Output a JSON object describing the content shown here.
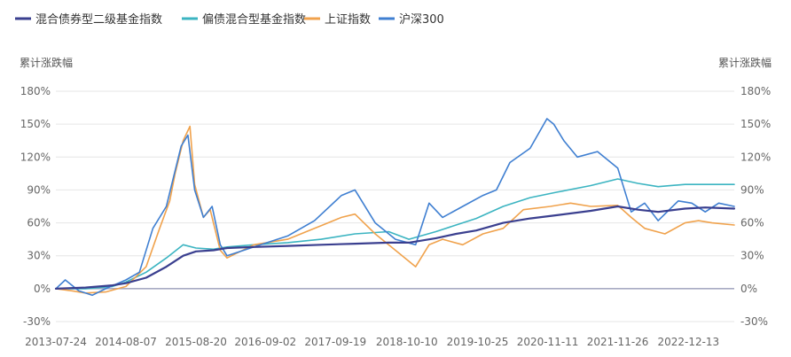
{
  "chart_data": {
    "type": "line",
    "ylabel_left": "累计涨跌幅",
    "ylabel_right": "累计涨跌幅",
    "ylim": [
      -30,
      180
    ],
    "yticks": [
      -30,
      0,
      30,
      60,
      90,
      120,
      150,
      180
    ],
    "ytick_labels": [
      "-30%",
      "0%",
      "30%",
      "60%",
      "90%",
      "120%",
      "150%",
      "180%"
    ],
    "xtick_labels": [
      "2013-07-24",
      "2014-08-07",
      "2015-08-20",
      "2016-09-02",
      "2017-09-19",
      "2018-10-10",
      "2019-10-25",
      "2020-11-11",
      "2021-11-26",
      "2022-12-13"
    ],
    "xtick_positions": [
      2013.56,
      2014.6,
      2015.64,
      2016.67,
      2017.71,
      2018.77,
      2019.82,
      2020.86,
      2021.9,
      2022.95
    ],
    "xlim": [
      2013.56,
      2023.63
    ],
    "grid": true,
    "legend_position": "top-left",
    "series": [
      {
        "name": "混合债券型二级基金指数",
        "color": "#3a3f8f",
        "x": [
          2013.56,
          2014.0,
          2014.4,
          2014.6,
          2014.9,
          2015.2,
          2015.45,
          2015.64,
          2015.9,
          2016.1,
          2016.5,
          2017.0,
          2017.5,
          2018.0,
          2018.5,
          2018.8,
          2019.2,
          2019.5,
          2019.8,
          2020.2,
          2020.6,
          2021.0,
          2021.5,
          2021.9,
          2022.2,
          2022.5,
          2022.9,
          2023.2,
          2023.63
        ],
        "values": [
          0,
          1,
          3,
          5,
          10,
          20,
          30,
          34,
          35,
          37,
          38,
          39,
          40,
          41,
          42,
          42,
          46,
          50,
          53,
          60,
          64,
          67,
          71,
          75,
          72,
          70,
          73,
          74,
          73
        ]
      },
      {
        "name": "偏债混合型基金指数",
        "color": "#3bb4c1",
        "x": [
          2013.56,
          2014.0,
          2014.4,
          2014.6,
          2014.9,
          2015.2,
          2015.45,
          2015.64,
          2015.9,
          2016.1,
          2016.5,
          2017.0,
          2017.5,
          2018.0,
          2018.5,
          2018.8,
          2019.2,
          2019.5,
          2019.8,
          2020.2,
          2020.6,
          2021.0,
          2021.5,
          2021.9,
          2022.2,
          2022.5,
          2022.9,
          2023.2,
          2023.63
        ],
        "values": [
          0,
          0,
          2,
          6,
          15,
          28,
          40,
          37,
          36,
          38,
          40,
          42,
          45,
          50,
          52,
          45,
          52,
          58,
          64,
          75,
          83,
          88,
          94,
          100,
          96,
          93,
          95,
          95,
          95
        ]
      },
      {
        "name": "上证指数",
        "color": "#f0a24c",
        "x": [
          2013.56,
          2013.8,
          2014.0,
          2014.3,
          2014.6,
          2014.9,
          2015.1,
          2015.25,
          2015.33,
          2015.45,
          2015.55,
          2015.62,
          2015.75,
          2015.85,
          2016.0,
          2016.1,
          2016.5,
          2017.0,
          2017.4,
          2017.8,
          2018.0,
          2018.3,
          2018.6,
          2018.9,
          2019.1,
          2019.3,
          2019.6,
          2019.9,
          2020.2,
          2020.5,
          2020.9,
          2021.2,
          2021.5,
          2021.9,
          2022.1,
          2022.3,
          2022.6,
          2022.9,
          2023.1,
          2023.3,
          2023.63
        ],
        "values": [
          0,
          -2,
          -4,
          -3,
          2,
          20,
          55,
          80,
          105,
          135,
          148,
          95,
          65,
          72,
          35,
          28,
          40,
          45,
          55,
          65,
          68,
          50,
          35,
          20,
          40,
          45,
          40,
          50,
          55,
          72,
          75,
          78,
          75,
          76,
          65,
          55,
          50,
          60,
          62,
          60,
          58
        ]
      },
      {
        "name": "沪深300",
        "color": "#3f7fd1",
        "x": [
          2013.56,
          2013.7,
          2013.9,
          2014.1,
          2014.3,
          2014.6,
          2014.8,
          2015.0,
          2015.2,
          2015.3,
          2015.42,
          2015.52,
          2015.62,
          2015.75,
          2015.88,
          2016.0,
          2016.1,
          2016.5,
          2017.0,
          2017.4,
          2017.8,
          2018.0,
          2018.3,
          2018.6,
          2018.9,
          2019.1,
          2019.3,
          2019.6,
          2019.9,
          2020.1,
          2020.3,
          2020.6,
          2020.85,
          2020.95,
          2021.1,
          2021.3,
          2021.6,
          2021.9,
          2022.1,
          2022.3,
          2022.5,
          2022.8,
          2023.0,
          2023.2,
          2023.4,
          2023.63
        ],
        "values": [
          0,
          8,
          -2,
          -6,
          0,
          8,
          15,
          55,
          75,
          100,
          130,
          140,
          90,
          65,
          75,
          40,
          30,
          38,
          48,
          62,
          85,
          90,
          60,
          45,
          40,
          78,
          65,
          75,
          85,
          90,
          115,
          128,
          155,
          150,
          135,
          120,
          125,
          110,
          70,
          78,
          62,
          80,
          78,
          70,
          78,
          75
        ]
      }
    ]
  }
}
